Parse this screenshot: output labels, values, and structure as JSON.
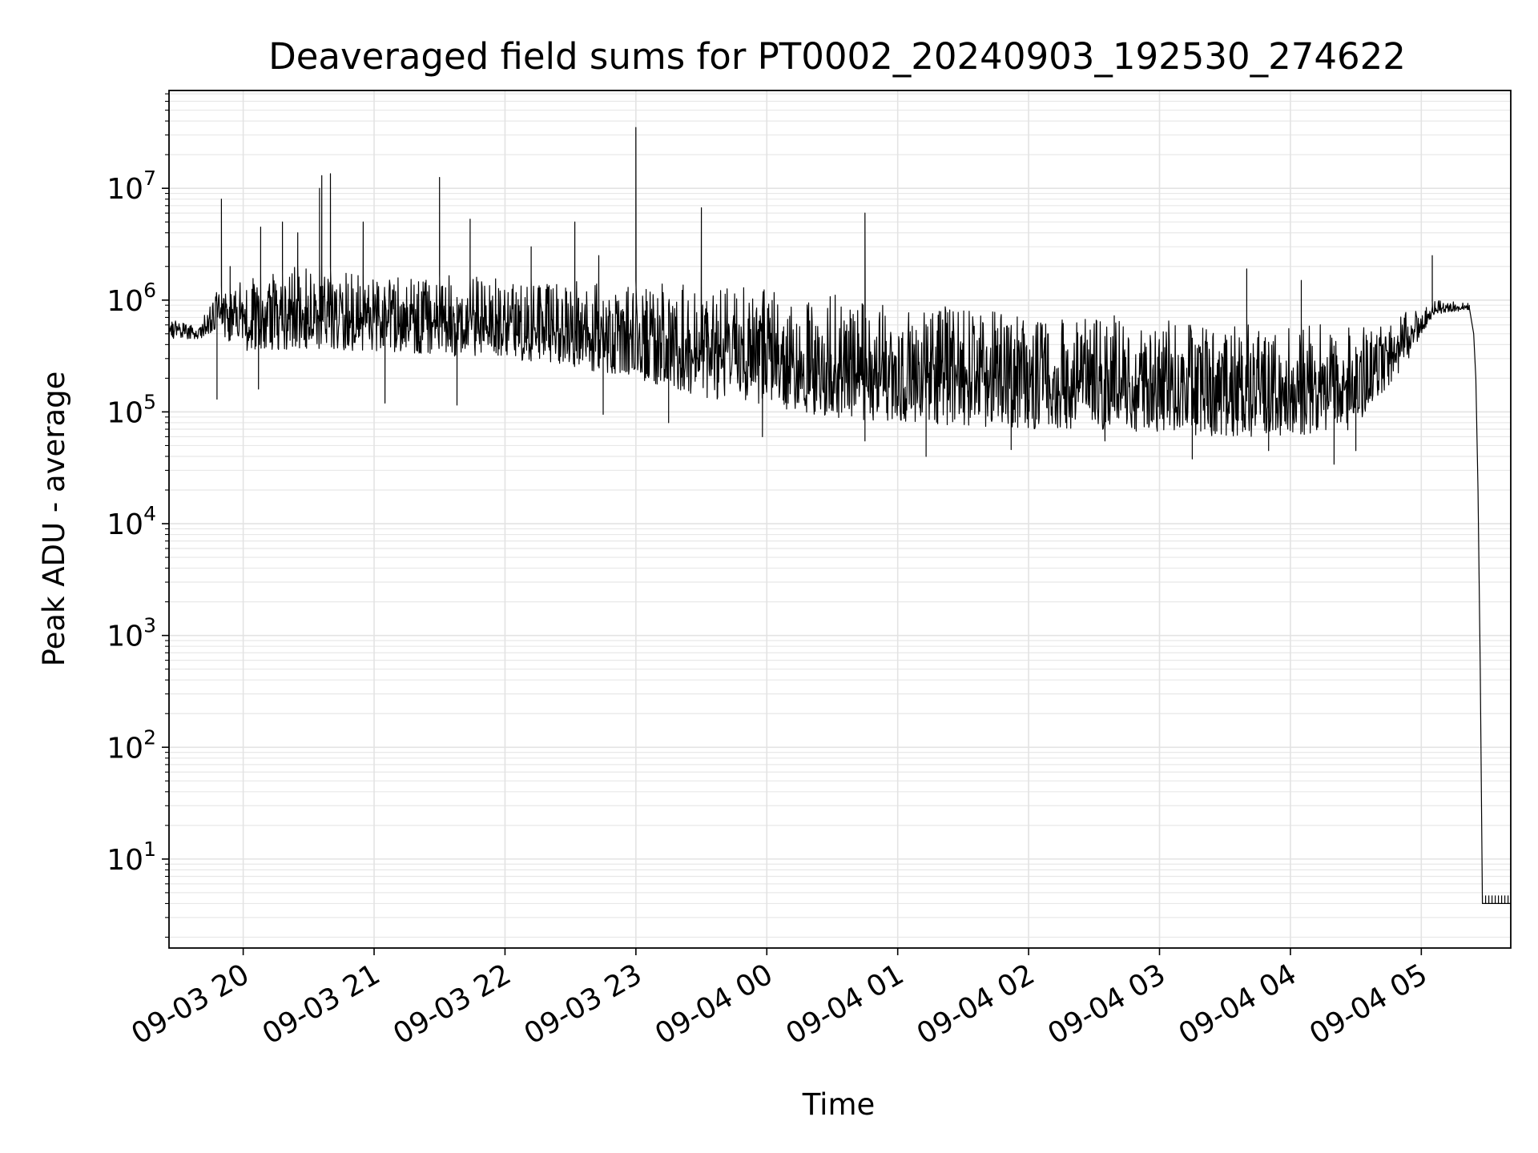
{
  "chart_data": {
    "type": "line",
    "title": "Deaveraged field sums for PT0002_20240903_192530_274622",
    "xlabel": "Time",
    "ylabel": "Peak ADU - average",
    "yscale": "log",
    "grid": true,
    "series_color": "#000000",
    "xlim": [
      "2024-09-03 19:26",
      "2024-09-04 05:41"
    ],
    "ylim": [
      1.6,
      75000000
    ],
    "x_ticks": [
      {
        "value": "2024-09-03 20:00",
        "label": "09-03 20"
      },
      {
        "value": "2024-09-03 21:00",
        "label": "09-03 21"
      },
      {
        "value": "2024-09-03 22:00",
        "label": "09-03 22"
      },
      {
        "value": "2024-09-03 23:00",
        "label": "09-03 23"
      },
      {
        "value": "2024-09-04 00:00",
        "label": "09-04 00"
      },
      {
        "value": "2024-09-04 01:00",
        "label": "09-04 01"
      },
      {
        "value": "2024-09-04 02:00",
        "label": "09-04 02"
      },
      {
        "value": "2024-09-04 03:00",
        "label": "09-04 03"
      },
      {
        "value": "2024-09-04 04:00",
        "label": "09-04 04"
      },
      {
        "value": "2024-09-04 05:00",
        "label": "09-04 05"
      }
    ],
    "y_ticks": [
      {
        "value": 10,
        "base": "10",
        "exp": "1"
      },
      {
        "value": 100,
        "base": "10",
        "exp": "2"
      },
      {
        "value": 1000,
        "base": "10",
        "exp": "3"
      },
      {
        "value": 10000,
        "base": "10",
        "exp": "4"
      },
      {
        "value": 100000,
        "base": "10",
        "exp": "5"
      },
      {
        "value": 1000000,
        "base": "10",
        "exp": "6"
      },
      {
        "value": 10000000,
        "base": "10",
        "exp": "7"
      }
    ],
    "envelope": [
      {
        "x": "2024-09-03 19:26",
        "upper": 700000,
        "lower": 450000
      },
      {
        "x": "2024-09-03 19:40",
        "upper": 650000,
        "lower": 450000
      },
      {
        "x": "2024-09-03 19:48",
        "upper": 1300000,
        "lower": 500000
      },
      {
        "x": "2024-09-03 20:00",
        "upper": 1600000,
        "lower": 350000
      },
      {
        "x": "2024-09-03 20:30",
        "upper": 2200000,
        "lower": 350000
      },
      {
        "x": "2024-09-03 21:00",
        "upper": 1700000,
        "lower": 350000
      },
      {
        "x": "2024-09-03 21:30",
        "upper": 1700000,
        "lower": 320000
      },
      {
        "x": "2024-09-03 22:00",
        "upper": 1600000,
        "lower": 300000
      },
      {
        "x": "2024-09-03 22:30",
        "upper": 1600000,
        "lower": 250000
      },
      {
        "x": "2024-09-03 23:00",
        "upper": 1500000,
        "lower": 200000
      },
      {
        "x": "2024-09-03 23:30",
        "upper": 1400000,
        "lower": 130000
      },
      {
        "x": "2024-09-04 00:00",
        "upper": 1300000,
        "lower": 110000
      },
      {
        "x": "2024-09-04 00:30",
        "upper": 1200000,
        "lower": 90000
      },
      {
        "x": "2024-09-04 01:00",
        "upper": 1000000,
        "lower": 80000
      },
      {
        "x": "2024-09-04 01:30",
        "upper": 900000,
        "lower": 75000
      },
      {
        "x": "2024-09-04 02:00",
        "upper": 800000,
        "lower": 70000
      },
      {
        "x": "2024-09-04 02:30",
        "upper": 750000,
        "lower": 70000
      },
      {
        "x": "2024-09-04 03:00",
        "upper": 750000,
        "lower": 65000
      },
      {
        "x": "2024-09-04 03:30",
        "upper": 700000,
        "lower": 60000
      },
      {
        "x": "2024-09-04 04:00",
        "upper": 650000,
        "lower": 60000
      },
      {
        "x": "2024-09-04 04:30",
        "upper": 600000,
        "lower": 70000
      },
      {
        "x": "2024-09-04 04:52",
        "upper": 800000,
        "lower": 250000
      },
      {
        "x": "2024-09-04 05:06",
        "upper": 1000000,
        "lower": 750000
      },
      {
        "x": "2024-09-04 05:20",
        "upper": 950000,
        "lower": 800000
      }
    ],
    "spikes": [
      {
        "x": "2024-09-03 19:50",
        "y": 8000000
      },
      {
        "x": "2024-09-03 19:54",
        "y": 2000000
      },
      {
        "x": "2024-09-03 20:08",
        "y": 4500000
      },
      {
        "x": "2024-09-03 20:18",
        "y": 5000000
      },
      {
        "x": "2024-09-03 20:25",
        "y": 4000000
      },
      {
        "x": "2024-09-03 20:35",
        "y": 10000000
      },
      {
        "x": "2024-09-03 20:36",
        "y": 13000000
      },
      {
        "x": "2024-09-03 20:40",
        "y": 13500000
      },
      {
        "x": "2024-09-03 20:55",
        "y": 5000000
      },
      {
        "x": "2024-09-03 21:30",
        "y": 12500000
      },
      {
        "x": "2024-09-03 21:44",
        "y": 5300000
      },
      {
        "x": "2024-09-03 22:12",
        "y": 3000000
      },
      {
        "x": "2024-09-03 22:32",
        "y": 5000000
      },
      {
        "x": "2024-09-03 22:43",
        "y": 2500000
      },
      {
        "x": "2024-09-03 23:00",
        "y": 35000000
      },
      {
        "x": "2024-09-03 23:30",
        "y": 6700000
      },
      {
        "x": "2024-09-04 00:45",
        "y": 6000000
      },
      {
        "x": "2024-09-04 03:40",
        "y": 1900000
      },
      {
        "x": "2024-09-04 04:05",
        "y": 1500000
      },
      {
        "x": "2024-09-04 05:05",
        "y": 2500000
      }
    ],
    "dips": [
      {
        "x": "2024-09-03 19:48",
        "y": 130000
      },
      {
        "x": "2024-09-03 20:07",
        "y": 160000
      },
      {
        "x": "2024-09-03 21:05",
        "y": 120000
      },
      {
        "x": "2024-09-03 21:38",
        "y": 115000
      },
      {
        "x": "2024-09-03 22:45",
        "y": 95000
      },
      {
        "x": "2024-09-03 23:15",
        "y": 80000
      },
      {
        "x": "2024-09-03 23:58",
        "y": 60000
      },
      {
        "x": "2024-09-04 00:45",
        "y": 55000
      },
      {
        "x": "2024-09-04 01:13",
        "y": 40000
      },
      {
        "x": "2024-09-04 01:52",
        "y": 46000
      },
      {
        "x": "2024-09-04 02:35",
        "y": 55000
      },
      {
        "x": "2024-09-04 03:15",
        "y": 38000
      },
      {
        "x": "2024-09-04 03:50",
        "y": 45000
      },
      {
        "x": "2024-09-04 04:20",
        "y": 34000
      },
      {
        "x": "2024-09-04 04:30",
        "y": 45000
      }
    ],
    "drop": [
      {
        "x": "2024-09-04 05:22",
        "y": 850000
      },
      {
        "x": "2024-09-04 05:24",
        "y": 500000
      },
      {
        "x": "2024-09-04 05:25",
        "y": 200000
      },
      {
        "x": "2024-09-04 05:26",
        "y": 20000
      },
      {
        "x": "2024-09-04 05:27",
        "y": 500
      },
      {
        "x": "2024-09-04 05:28",
        "y": 4
      },
      {
        "x": "2024-09-04 05:41",
        "y": 4
      }
    ]
  }
}
